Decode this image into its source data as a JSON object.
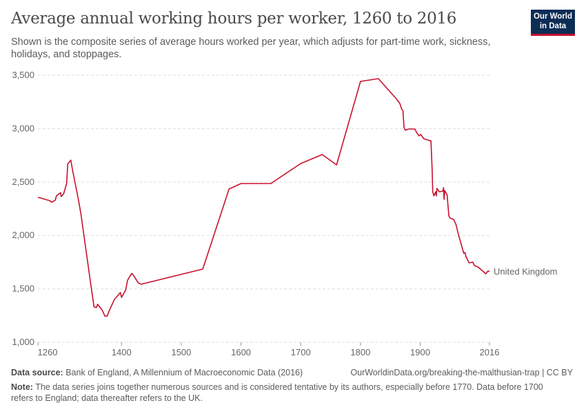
{
  "header": {
    "title": "Average annual working hours per worker, 1260 to 2016",
    "subtitle": "Shown is the composite series of average hours worked per year, which adjusts for part-time work, sickness, holidays, and stoppages.",
    "logo": "Our World in Data"
  },
  "footer": {
    "source_label": "Data source:",
    "source": "Bank of England, A Millennium of Macroeconomic Data (2016)",
    "url": "OurWorldinData.org/breaking-the-malthusian-trap | CC BY",
    "note_label": "Note:",
    "note": "The data series joins together numerous sources and is considered tentative by its authors, especially before 1770. Data before 1700 refers to England; data thereafter refers to the UK."
  },
  "chart_data": {
    "type": "line",
    "title": "Average annual working hours per worker, 1260 to 2016",
    "xlim": [
      1260,
      2016
    ],
    "ylim": [
      1000,
      3500
    ],
    "x_ticks": [
      1260,
      1400,
      1500,
      1600,
      1700,
      1800,
      1900,
      2016
    ],
    "x_tick_labels": [
      "1260",
      "1400",
      "1500",
      "1600",
      "1700",
      "1800",
      "1900",
      "2016"
    ],
    "y_ticks": [
      1000,
      1500,
      2000,
      2500,
      3000,
      3500
    ],
    "y_tick_labels": [
      "1,000",
      "1,500",
      "2,000",
      "2,500",
      "3,000",
      "3,500"
    ],
    "grid": "horizontal dashed",
    "series": [
      {
        "name": "United Kingdom",
        "color": "#c8102e",
        "points": [
          [
            1260,
            2357
          ],
          [
            1280,
            2325
          ],
          [
            1283,
            2310
          ],
          [
            1289,
            2330
          ],
          [
            1291,
            2370
          ],
          [
            1298,
            2400
          ],
          [
            1299,
            2363
          ],
          [
            1303,
            2390
          ],
          [
            1308,
            2485
          ],
          [
            1310,
            2670
          ],
          [
            1315,
            2705
          ],
          [
            1318,
            2610
          ],
          [
            1328,
            2330
          ],
          [
            1332,
            2200
          ],
          [
            1345,
            1685
          ],
          [
            1349,
            1523
          ],
          [
            1354,
            1330
          ],
          [
            1358,
            1325
          ],
          [
            1360,
            1355
          ],
          [
            1368,
            1297
          ],
          [
            1372,
            1245
          ],
          [
            1376,
            1245
          ],
          [
            1379,
            1290
          ],
          [
            1388,
            1400
          ],
          [
            1398,
            1465
          ],
          [
            1400,
            1420
          ],
          [
            1407,
            1490
          ],
          [
            1410,
            1580
          ],
          [
            1417,
            1645
          ],
          [
            1420,
            1627
          ],
          [
            1428,
            1555
          ],
          [
            1433,
            1543
          ],
          [
            1536,
            1685
          ],
          [
            1580,
            2434
          ],
          [
            1600,
            2486
          ],
          [
            1650,
            2486
          ],
          [
            1700,
            2673
          ],
          [
            1736,
            2757
          ],
          [
            1760,
            2660
          ],
          [
            1800,
            3442
          ],
          [
            1830,
            3468
          ],
          [
            1860,
            3280
          ],
          [
            1866,
            3235
          ],
          [
            1869,
            3183
          ],
          [
            1871,
            3170
          ],
          [
            1873,
            3010
          ],
          [
            1875,
            2985
          ],
          [
            1881,
            2996
          ],
          [
            1891,
            2996
          ],
          [
            1894,
            2964
          ],
          [
            1898,
            2932
          ],
          [
            1901,
            2945
          ],
          [
            1906,
            2906
          ],
          [
            1916,
            2887
          ],
          [
            1918,
            2887
          ],
          [
            1920,
            2620
          ],
          [
            1921,
            2408
          ],
          [
            1923,
            2370
          ],
          [
            1926,
            2408
          ],
          [
            1927,
            2370
          ],
          [
            1928,
            2440
          ],
          [
            1932,
            2408
          ],
          [
            1938,
            2415
          ],
          [
            1939,
            2447
          ],
          [
            1940,
            2337
          ],
          [
            1941,
            2420
          ],
          [
            1945,
            2382
          ],
          [
            1948,
            2182
          ],
          [
            1950,
            2163
          ],
          [
            1956,
            2150
          ],
          [
            1960,
            2100
          ],
          [
            1964,
            2010
          ],
          [
            1969,
            1910
          ],
          [
            1973,
            1833
          ],
          [
            1975,
            1840
          ],
          [
            1977,
            1795
          ],
          [
            1982,
            1743
          ],
          [
            1988,
            1750
          ],
          [
            1991,
            1717
          ],
          [
            1997,
            1704
          ],
          [
            2005,
            1665
          ],
          [
            2010,
            1640
          ],
          [
            2013,
            1665
          ],
          [
            2016,
            1665
          ]
        ]
      }
    ]
  }
}
